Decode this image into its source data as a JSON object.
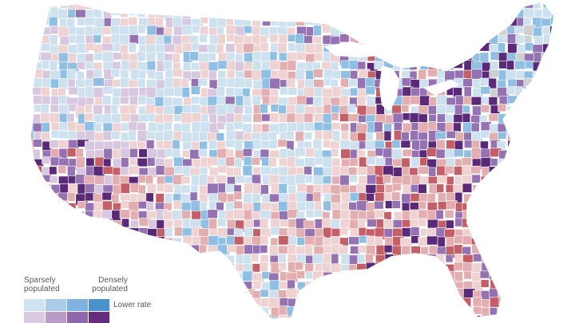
{
  "legend": {
    "sparse_label_line1": "Sparsely",
    "sparse_label_line2": "populated",
    "dense_label_line1": "Densely",
    "dense_label_line2": "populated",
    "row_label": "Lower rate",
    "lower_rate_colors": [
      "#cfe3f1",
      "#a9cde9",
      "#7fb3e0",
      "#4a92cc"
    ],
    "higher_rate_colors": [
      "#dccbe0",
      "#b89bc7",
      "#8e67ad",
      "#652c80"
    ]
  },
  "palette": {
    "light_blue": "#cde1ef",
    "mid_blue": "#8fbfe3",
    "blue": "#4f95cf",
    "light_pink": "#efd3d3",
    "pink": "#e3aeb0",
    "red": "#c45f67",
    "light_purple": "#d7c8df",
    "purple": "#9572b2",
    "dark_purple": "#5a2a79",
    "gray": "#cfcfcf"
  }
}
